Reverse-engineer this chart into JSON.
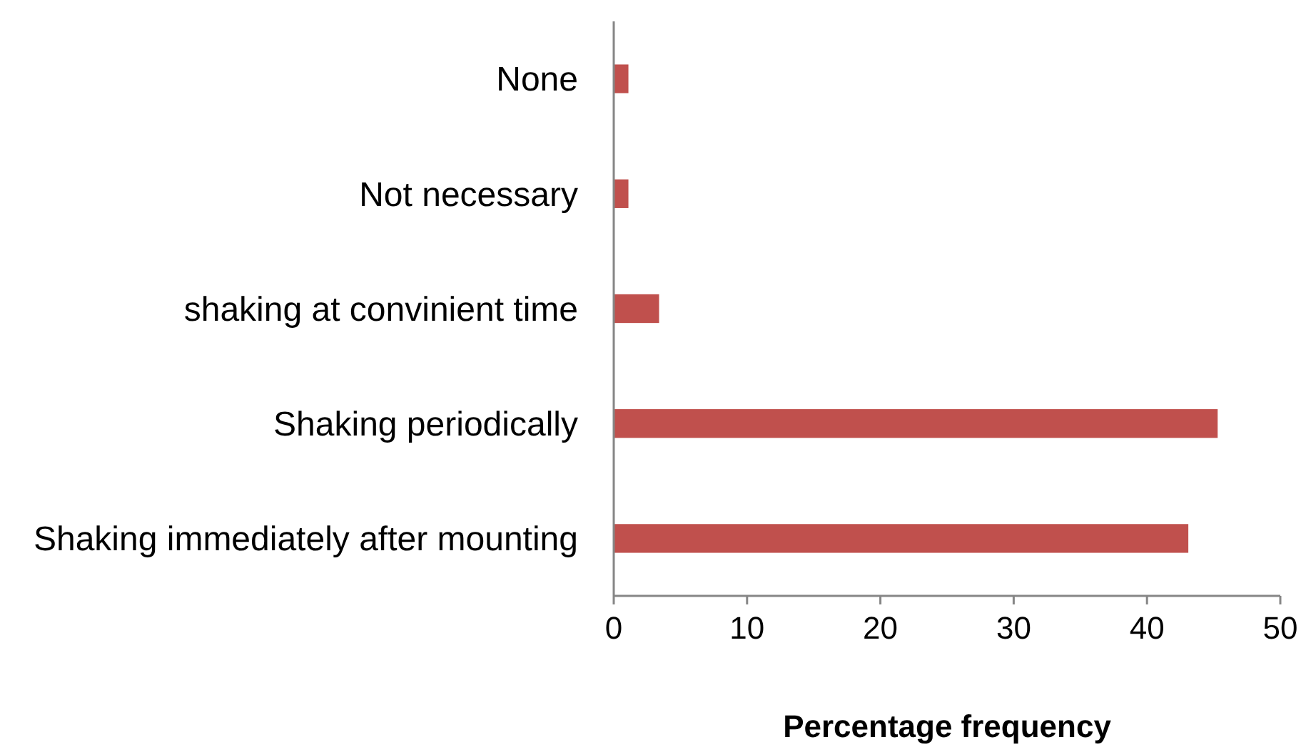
{
  "chart_data": {
    "type": "bar",
    "orientation": "horizontal",
    "xlabel": "Percentage frequency",
    "categories": [
      "None",
      "Not necessary",
      "shaking at convinient time",
      "Shaking periodically",
      "Shaking immediately after mounting"
    ],
    "values": [
      1.1,
      1.1,
      3.4,
      45.3,
      43.1
    ],
    "color": "#c0504d",
    "xlim": [
      0,
      50
    ],
    "xticks": [
      0,
      10,
      20,
      30,
      40,
      50
    ]
  }
}
